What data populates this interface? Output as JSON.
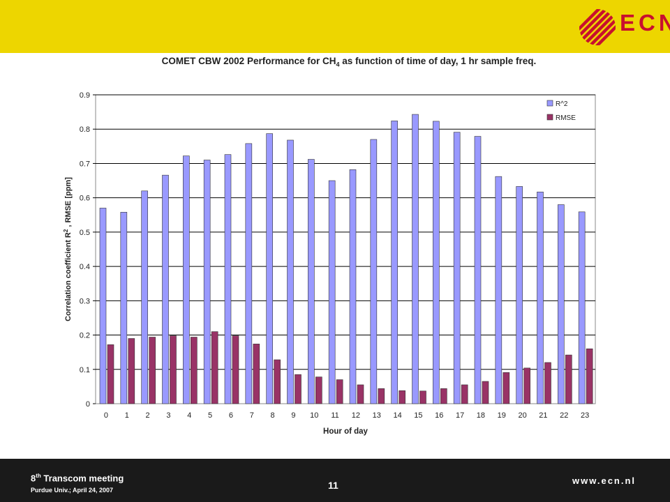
{
  "header": {
    "logo_text": "ECN",
    "brand_color": "#edd600",
    "logo_color": "#c8102e"
  },
  "footer": {
    "title_prefix": "8",
    "title_sup": "th",
    "title_rest": " Transcom meeting",
    "subtitle": "Purdue Univ.; April 24, 2007",
    "page_number": "11",
    "website": "www.ecn.nl"
  },
  "chart_data": {
    "type": "bar",
    "title_main": "COMET CBW 2002 Performance for CH",
    "title_sub": "4",
    "title_end": " as function of time of day, 1 hr sample freq.",
    "xlabel": "Hour of day",
    "ylabel_pre": "Correlation coefficient R",
    "ylabel_sup": "2",
    "ylabel_post": " , RMSE [ppm]",
    "ylim": [
      0,
      0.9
    ],
    "yticks": [
      "0",
      "0.1",
      "0.2",
      "0.3",
      "0.4",
      "0.5",
      "0.6",
      "0.7",
      "0.8",
      "0.9"
    ],
    "grid": true,
    "legend_position": "top-right",
    "categories": [
      "0",
      "1",
      "2",
      "3",
      "4",
      "5",
      "6",
      "7",
      "8",
      "9",
      "10",
      "11",
      "12",
      "13",
      "14",
      "15",
      "16",
      "17",
      "18",
      "19",
      "20",
      "21",
      "22",
      "23"
    ],
    "series": [
      {
        "name": "R^2",
        "color": "#9999ff",
        "values": [
          0.57,
          0.558,
          0.62,
          0.666,
          0.722,
          0.71,
          0.726,
          0.758,
          0.787,
          0.768,
          0.712,
          0.65,
          0.682,
          0.77,
          0.824,
          0.843,
          0.823,
          0.791,
          0.779,
          0.662,
          0.633,
          0.617,
          0.58,
          0.559
        ]
      },
      {
        "name": "RMSE",
        "color": "#993366",
        "values": [
          0.172,
          0.19,
          0.194,
          0.198,
          0.194,
          0.21,
          0.198,
          0.174,
          0.128,
          0.085,
          0.078,
          0.07,
          0.055,
          0.044,
          0.038,
          0.037,
          0.044,
          0.055,
          0.065,
          0.091,
          0.104,
          0.12,
          0.142,
          0.16
        ]
      }
    ]
  }
}
